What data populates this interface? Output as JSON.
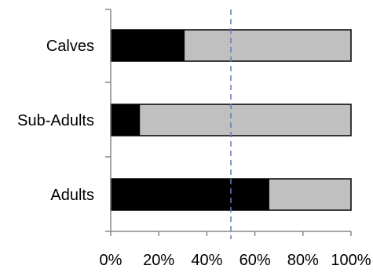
{
  "chart_data": {
    "type": "bar",
    "orientation": "horizontal",
    "stacked": true,
    "categories": [
      "Calves",
      "Sub-Adults",
      "Adults"
    ],
    "series": [
      {
        "values": [
          30.8,
          12.2,
          66.0
        ]
      },
      {
        "values": [
          69.2,
          87.8,
          34.0
        ]
      }
    ],
    "xlim": [
      0,
      100
    ],
    "x_ticks": [
      "0%",
      "20%",
      "40%",
      "60%",
      "80%",
      "100%"
    ],
    "reference_line": {
      "x": 50,
      "style": "dashed"
    },
    "colors": {
      "series_1": "#000000",
      "series_2": "#c0c0c0",
      "bar_border": "#000000",
      "axis": "#888888",
      "reference_line": "#5b7fbf"
    },
    "grid": false,
    "legend": "none"
  }
}
